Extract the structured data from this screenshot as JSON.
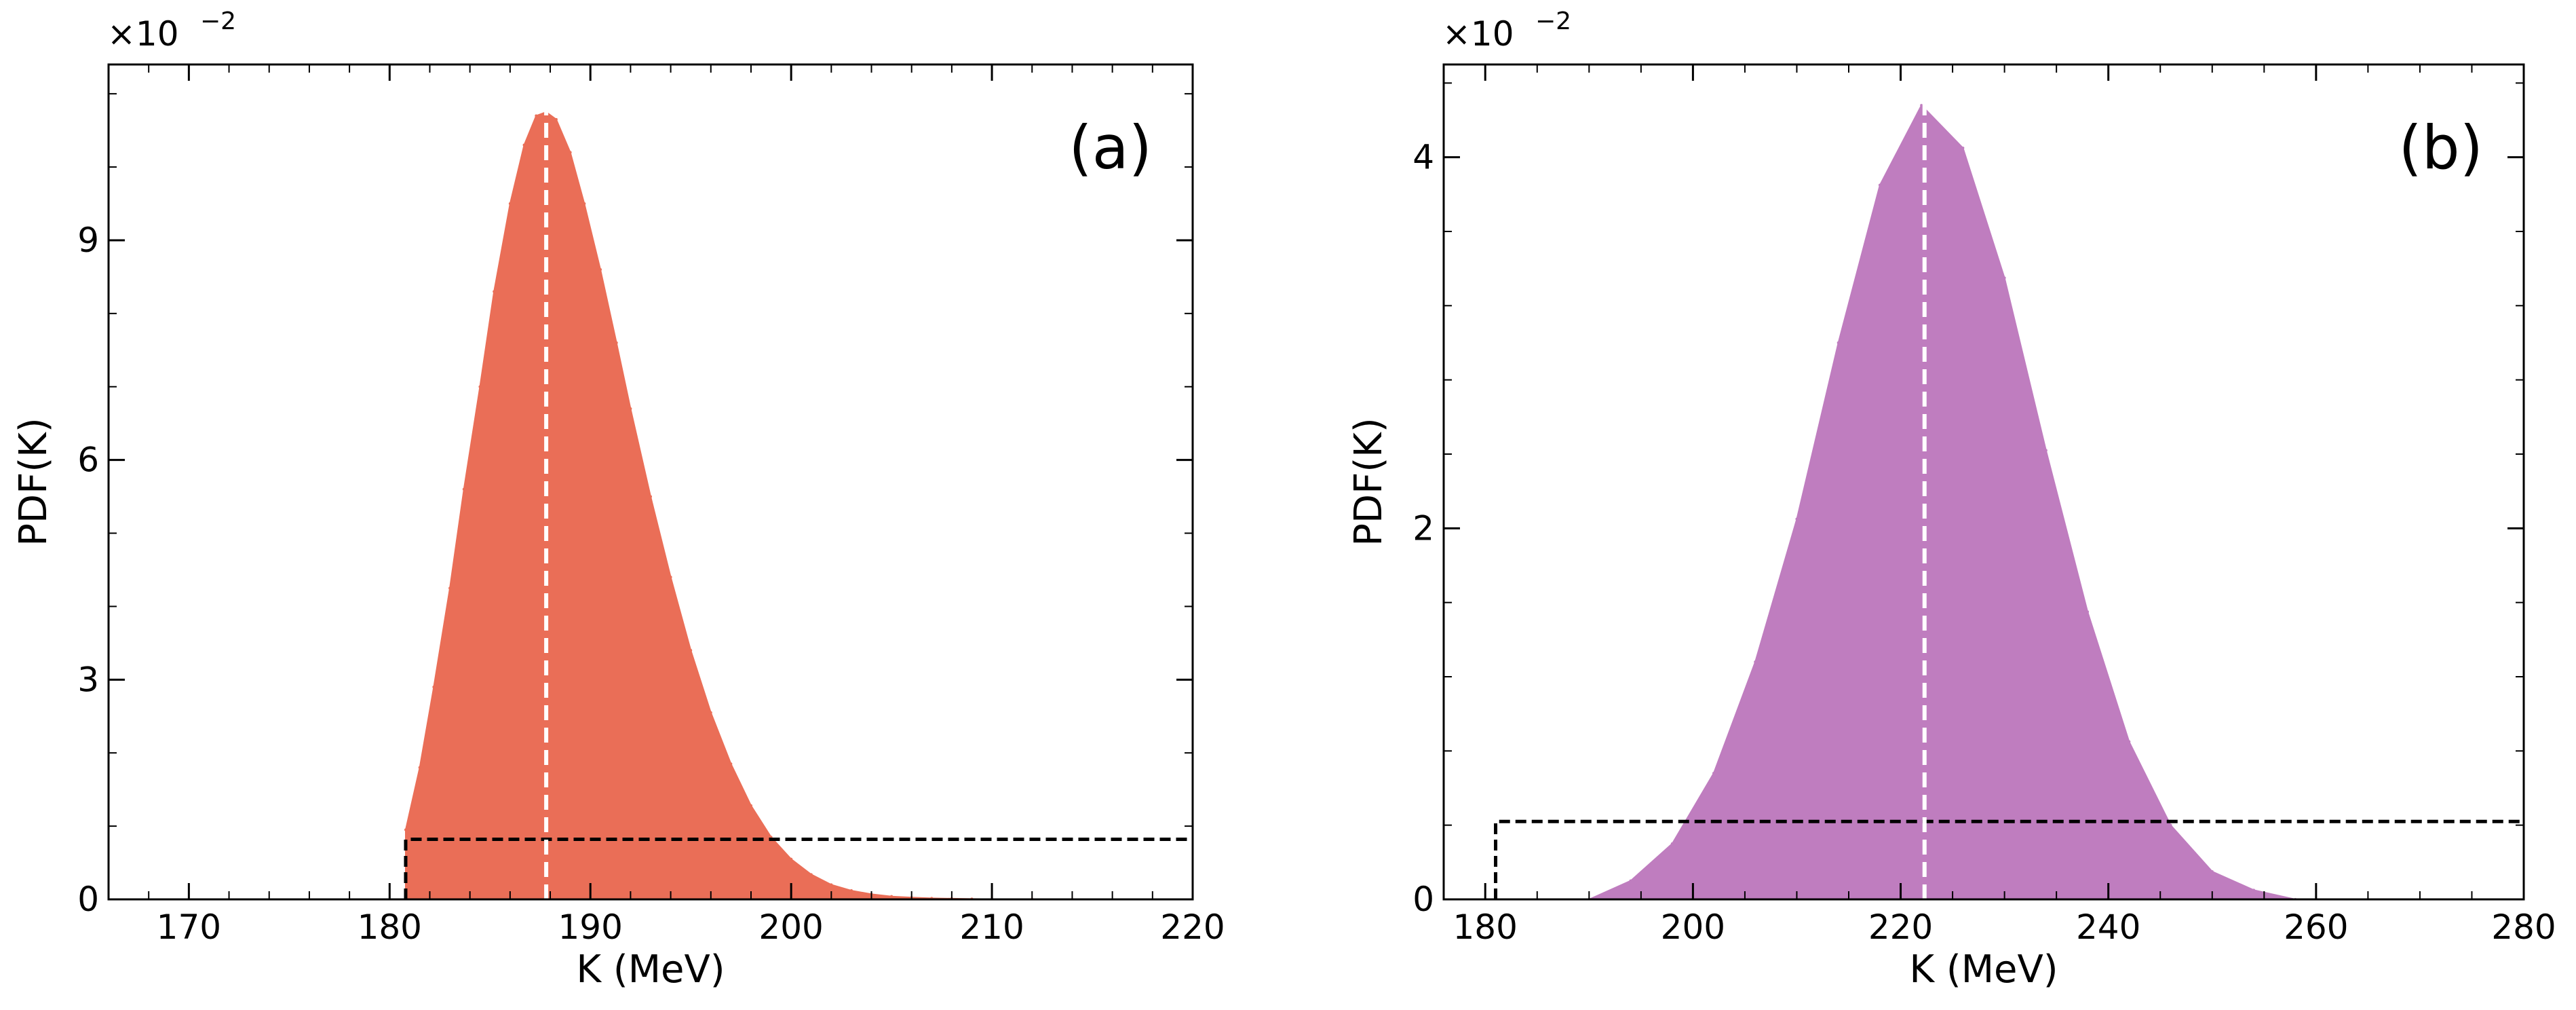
{
  "chart_data": [
    {
      "panel_label": "(a)",
      "type": "area",
      "xlabel": "K (MeV)",
      "ylabel": "PDF(K)",
      "y_multiplier": "×10",
      "y_multiplier_exp": "−2",
      "xlim": [
        166,
        220
      ],
      "ylim": [
        0,
        11.4
      ],
      "xticks": [
        170,
        180,
        190,
        200,
        210,
        220
      ],
      "yticks": [
        0,
        3,
        6,
        9
      ],
      "x_minor_step": 2,
      "y_minor_step": 1,
      "grid": false,
      "series": [
        {
          "kind": "filled_distribution",
          "color": "#EA6E57",
          "x": [
            180.8,
            181.5,
            182.2,
            183.0,
            183.7,
            184.5,
            185.2,
            186.0,
            186.7,
            187.3,
            187.8,
            188.3,
            189.0,
            189.7,
            190.5,
            191.3,
            192.0,
            193.0,
            194.0,
            195.0,
            196.0,
            197.0,
            198.0,
            199.0,
            200.0,
            201.0,
            202.0,
            203.0,
            204.0,
            205.0,
            206.0,
            207.0,
            208.0,
            209.0,
            210.0,
            212.0,
            214.0
          ],
          "y": [
            0.95,
            1.8,
            2.9,
            4.25,
            5.6,
            7.0,
            8.3,
            9.5,
            10.3,
            10.7,
            10.75,
            10.65,
            10.2,
            9.5,
            8.6,
            7.6,
            6.7,
            5.5,
            4.4,
            3.4,
            2.55,
            1.85,
            1.28,
            0.85,
            0.55,
            0.34,
            0.2,
            0.12,
            0.07,
            0.04,
            0.025,
            0.015,
            0.01,
            0.006,
            0.004,
            0.002,
            0.0
          ]
        },
        {
          "kind": "uniform_prior",
          "style": "dashed",
          "color": "#000000",
          "x_start": 180.8,
          "x_end": 220,
          "y": 0.82
        },
        {
          "kind": "reference_line",
          "style": "dashed",
          "color": "#ffffff",
          "x": 187.8
        }
      ]
    },
    {
      "panel_label": "(b)",
      "type": "area",
      "xlabel": "K (MeV)",
      "ylabel": "PDF(K)",
      "y_multiplier": "×10",
      "y_multiplier_exp": "−2",
      "xlim": [
        176,
        280
      ],
      "ylim": [
        0,
        4.5
      ],
      "xticks": [
        180,
        200,
        220,
        240,
        260,
        280
      ],
      "yticks": [
        0,
        2,
        4
      ],
      "x_minor_step": 5,
      "y_minor_step": 0.4,
      "grid": false,
      "series": [
        {
          "kind": "filled_distribution",
          "color": "#BF7DBF",
          "x": [
            190.0,
            194.0,
            198.0,
            202.0,
            206.0,
            210.0,
            214.0,
            218.0,
            222.0,
            226.0,
            230.0,
            234.0,
            238.0,
            242.0,
            246.0,
            250.0,
            254.0,
            258.0
          ],
          "y": [
            0.0,
            0.1,
            0.3,
            0.68,
            1.28,
            2.05,
            3.0,
            3.85,
            4.28,
            4.05,
            3.35,
            2.42,
            1.55,
            0.85,
            0.4,
            0.15,
            0.05,
            0.0
          ]
        },
        {
          "kind": "uniform_prior",
          "style": "dashed",
          "color": "#000000",
          "x_start": 181,
          "x_end": 280,
          "y": 0.42
        },
        {
          "kind": "reference_line",
          "style": "dashed",
          "color": "#ffffff",
          "x": 222.3
        }
      ]
    }
  ]
}
